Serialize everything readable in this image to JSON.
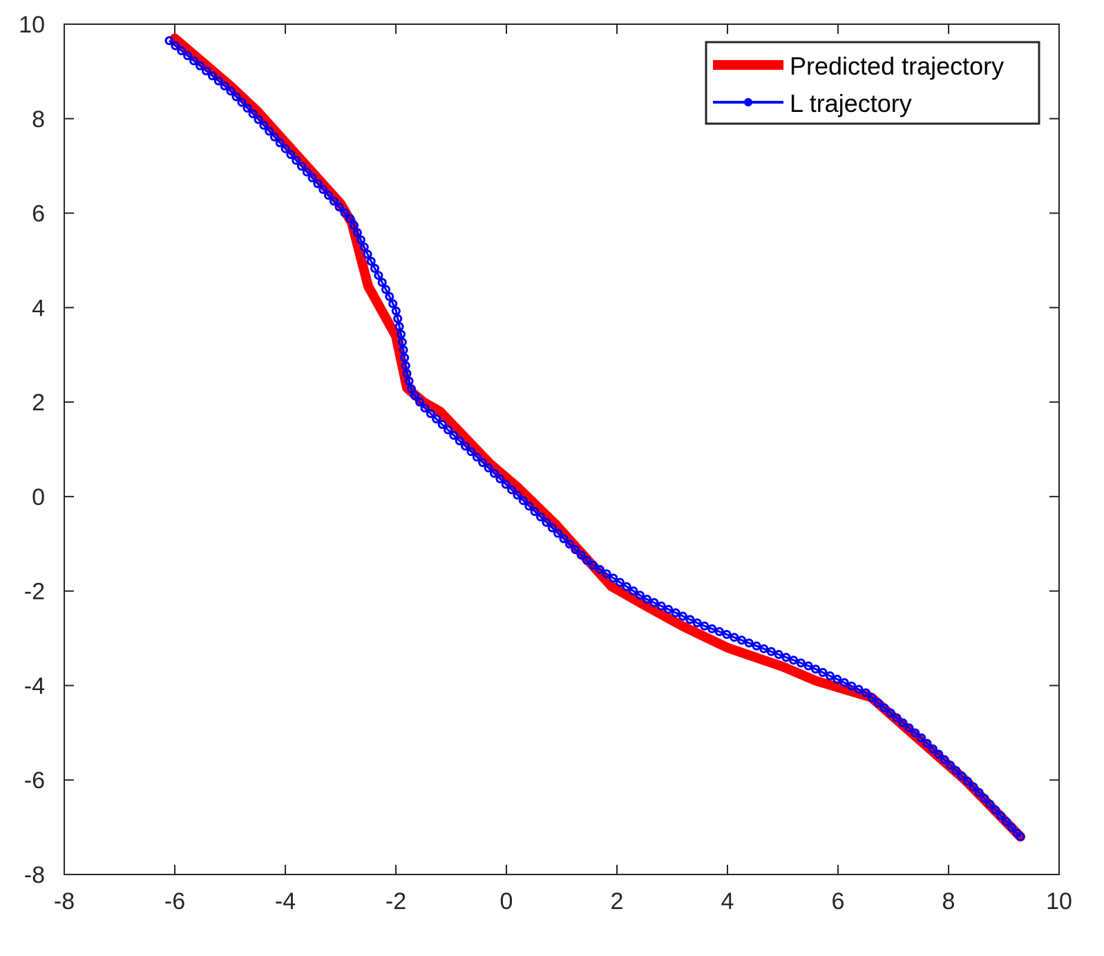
{
  "chart_data": {
    "type": "line",
    "title": "",
    "xlabel": "",
    "ylabel": "",
    "xlim": [
      -8,
      10
    ],
    "ylim": [
      -8,
      10
    ],
    "xticks": [
      -8,
      -6,
      -4,
      -2,
      0,
      2,
      4,
      6,
      8,
      10
    ],
    "yticks": [
      -8,
      -6,
      -4,
      -2,
      0,
      2,
      4,
      6,
      8,
      10
    ],
    "xtick_labels": [
      "-8",
      "-6",
      "-4",
      "-2",
      "0",
      "2",
      "4",
      "6",
      "8",
      "10"
    ],
    "ytick_labels": [
      "-8",
      "-6",
      "-4",
      "-2",
      "0",
      "2",
      "4",
      "6",
      "8",
      "10"
    ],
    "grid": false,
    "legend": {
      "position": "top-right",
      "entries": [
        "Predicted trajectory",
        "L trajectory"
      ]
    },
    "series": [
      {
        "name": "Predicted trajectory",
        "color": "#ff0000",
        "style": "thick-line",
        "x": [
          -6.0,
          -5.0,
          -4.5,
          -3.0,
          -2.8,
          -2.5,
          -2.0,
          -1.8,
          -1.5,
          -1.2,
          -0.3,
          0.2,
          0.9,
          1.9,
          2.5,
          3.2,
          4.0,
          5.0,
          5.6,
          6.6,
          8.3,
          9.3
        ],
        "y": [
          9.7,
          8.7,
          8.15,
          6.2,
          5.8,
          4.45,
          3.4,
          2.3,
          2.0,
          1.8,
          0.7,
          0.2,
          -0.6,
          -1.9,
          -2.3,
          -2.75,
          -3.2,
          -3.6,
          -3.9,
          -4.25,
          -6.0,
          -7.2
        ]
      },
      {
        "name": "L trajectory",
        "color": "#0000ff",
        "style": "line-with-circle-markers",
        "x": [
          -6.1,
          -5.0,
          -4.5,
          -3.0,
          -2.8,
          -2.5,
          -2.3,
          -2.1,
          -2.0,
          -1.9,
          -1.8,
          -1.7,
          -1.5,
          -1.0,
          0.0,
          1.0,
          1.5,
          2.5,
          3.5,
          4.5,
          5.5,
          6.5,
          7.5,
          8.5,
          9.3
        ],
        "y": [
          9.65,
          8.6,
          8.0,
          6.1,
          5.85,
          5.1,
          4.65,
          4.2,
          3.95,
          3.4,
          2.6,
          2.2,
          1.9,
          1.35,
          0.25,
          -0.85,
          -1.4,
          -2.15,
          -2.7,
          -3.15,
          -3.6,
          -4.15,
          -5.1,
          -6.2,
          -7.2
        ]
      }
    ]
  }
}
